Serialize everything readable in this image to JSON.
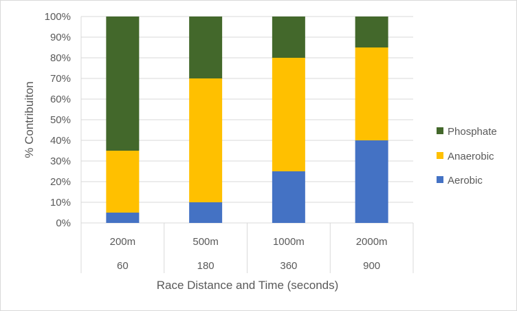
{
  "chart_data": {
    "type": "bar",
    "stacked": true,
    "title": "",
    "xlabel": "Race Distance and Time (seconds)",
    "ylabel": "% Contribuiton",
    "ylim": [
      0,
      100
    ],
    "y_ticks": [
      "0%",
      "10%",
      "20%",
      "30%",
      "40%",
      "50%",
      "60%",
      "70%",
      "80%",
      "90%",
      "100%"
    ],
    "categories": [
      "200m",
      "500m",
      "1000m",
      "2000m"
    ],
    "category_times": [
      "60",
      "180",
      "360",
      "900"
    ],
    "grid": true,
    "legend_position": "right",
    "series": [
      {
        "name": "Aerobic",
        "color": "#4472C4",
        "values": [
          5,
          10,
          25,
          40
        ]
      },
      {
        "name": "Anaerobic",
        "color": "#FFC000",
        "values": [
          30,
          60,
          55,
          45
        ]
      },
      {
        "name": "Phosphate",
        "color": "#43682B",
        "values": [
          65,
          30,
          20,
          15
        ]
      }
    ]
  }
}
